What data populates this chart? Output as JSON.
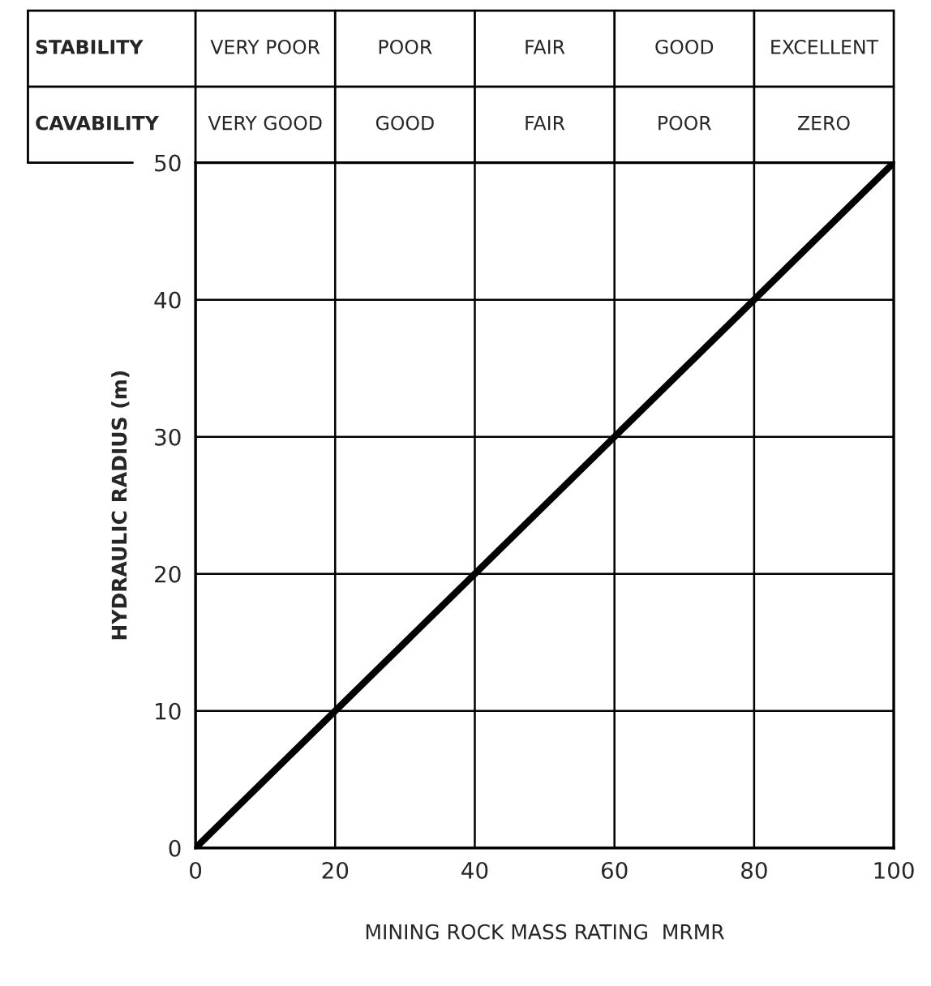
{
  "chart_data": {
    "type": "line",
    "xlabel": "MINING ROCK MASS RATING  MRMR",
    "ylabel": "HYDRAULIC RADIUS (m)",
    "series": [
      {
        "color": "#000000",
        "x": [
          0,
          100
        ],
        "values": [
          0,
          50
        ]
      }
    ],
    "xlim": [
      0,
      100
    ],
    "xticks": [
      0,
      20,
      40,
      60,
      80,
      100
    ],
    "ylim": [
      0,
      50
    ],
    "yticks": [
      0,
      10,
      20,
      30,
      40,
      50
    ],
    "grid": true,
    "legend": false,
    "annotations": [
      "STABILITY",
      "VERY POOR",
      "POOR",
      "FAIR",
      "GOOD",
      "EXCELLENT",
      "CAVABILITY",
      "VERY GOOD",
      "GOOD",
      "FAIR",
      "POOR",
      "ZERO"
    ]
  }
}
